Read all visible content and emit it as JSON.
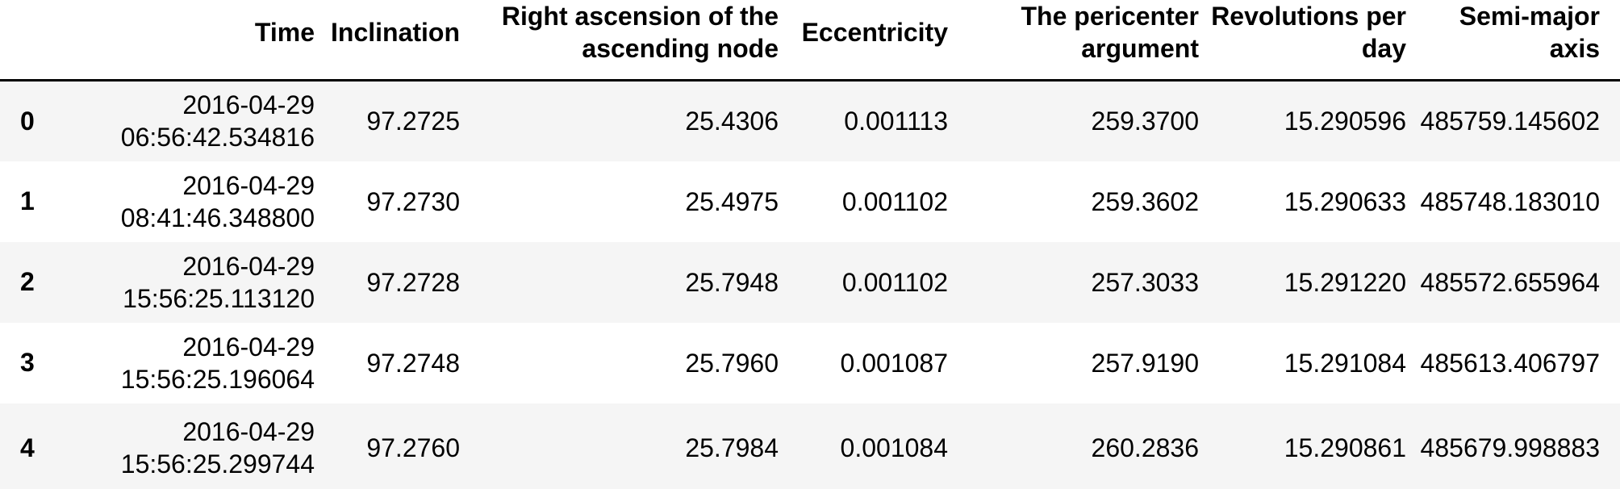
{
  "table": {
    "columns": [
      "",
      "Time",
      "Inclination",
      "Right ascension of the ascending node",
      "Eccentricity",
      "The pericenter argument",
      "Revolutions per day",
      "Semi-major axis"
    ],
    "rows": [
      [
        "0",
        "2016-04-29 06:56:42.534816",
        "97.2725",
        "25.4306",
        "0.001113",
        "259.3700",
        "15.290596",
        "485759.145602"
      ],
      [
        "1",
        "2016-04-29 08:41:46.348800",
        "97.2730",
        "25.4975",
        "0.001102",
        "259.3602",
        "15.290633",
        "485748.183010"
      ],
      [
        "2",
        "2016-04-29 15:56:25.113120",
        "97.2728",
        "25.7948",
        "0.001102",
        "257.3033",
        "15.291220",
        "485572.655964"
      ],
      [
        "3",
        "2016-04-29 15:56:25.196064",
        "97.2748",
        "25.7960",
        "0.001087",
        "257.9190",
        "15.291084",
        "485613.406797"
      ],
      [
        "4",
        "2016-04-29 15:56:25.299744",
        "97.2760",
        "25.7984",
        "0.001084",
        "260.2836",
        "15.290861",
        "485679.998883"
      ]
    ],
    "colors": {
      "row_stripe": "#f5f5f5",
      "header_border": "#000000",
      "text": "#000000"
    }
  }
}
